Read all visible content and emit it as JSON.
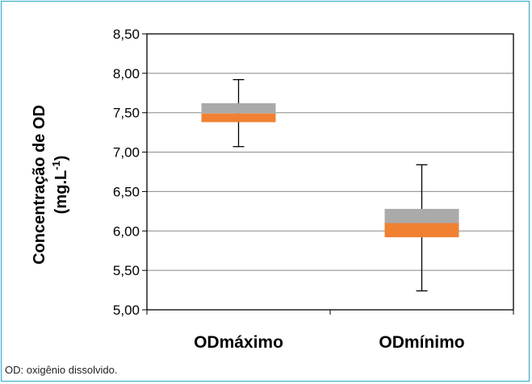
{
  "chart_data": {
    "type": "boxplot",
    "ylabel_line1": "Concentração de OD",
    "ylabel_line2_base": "(mg.L",
    "ylabel_line2_sup": "-1",
    "ylabel_line2_end": ")",
    "ylim": [
      5.0,
      8.5
    ],
    "yticks": [
      "5,00",
      "5,50",
      "6,00",
      "6,50",
      "7,00",
      "7,50",
      "8,00",
      "8,50"
    ],
    "ytick_values": [
      5.0,
      5.5,
      6.0,
      6.5,
      7.0,
      7.5,
      8.0,
      8.5
    ],
    "grid": true,
    "categories": [
      "ODmáximo",
      "ODmínimo"
    ],
    "boxes": [
      {
        "min": 7.07,
        "q1": 7.38,
        "median": 7.49,
        "q3": 7.62,
        "max": 7.92
      },
      {
        "min": 5.24,
        "q1": 5.92,
        "median": 6.1,
        "q3": 6.28,
        "max": 6.84
      }
    ],
    "colors": {
      "lower": "#f08133",
      "upper": "#aaaaaa",
      "grid": "#888888",
      "axis": "#000000"
    }
  },
  "footnote": "OD: oxigênio dissolvido."
}
